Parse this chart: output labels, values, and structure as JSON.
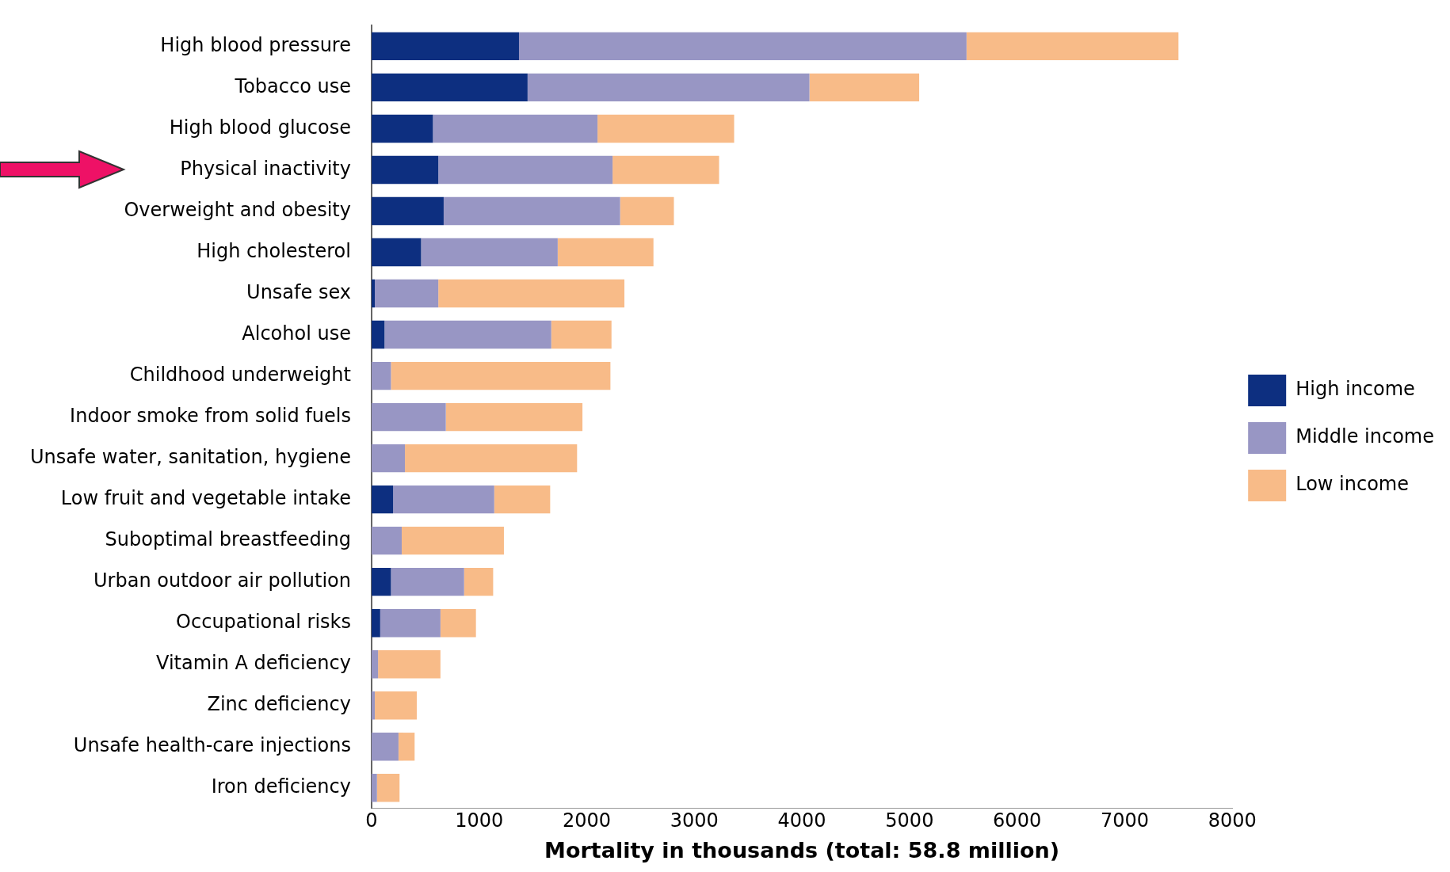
{
  "chart_data": {
    "type": "bar",
    "orientation": "horizontal",
    "stacked": true,
    "xlabel": "Mortality in thousands (total: 58.8 million)",
    "categories": [
      "High blood pressure",
      "Tobacco use",
      "High blood glucose",
      "Physical inactivity",
      "Overweight and obesity",
      "High cholesterol",
      "Unsafe sex",
      "Alcohol use",
      "Childhood underweight",
      "Indoor smoke from solid fuels",
      "Unsafe water, sanitation, hygiene",
      "Low fruit and vegetable intake",
      "Suboptimal breastfeeding",
      "Urban outdoor air pollution",
      "Occupational risks",
      "Vitamin A deficiency",
      "Zinc deficiency",
      "Unsafe health-care injections",
      "Iron deficiency"
    ],
    "series": [
      {
        "name": "High income",
        "color": "#0d2f80",
        "values": [
          1370,
          1450,
          570,
          620,
          670,
          460,
          30,
          120,
          0,
          0,
          0,
          200,
          0,
          180,
          80,
          0,
          0,
          0,
          0
        ]
      },
      {
        "name": "Middle income",
        "color": "#9896c4",
        "values": [
          4160,
          2620,
          1530,
          1620,
          1640,
          1270,
          590,
          1550,
          180,
          690,
          310,
          940,
          280,
          680,
          560,
          60,
          30,
          250,
          50
        ]
      },
      {
        "name": "Low income",
        "color": "#f8bb88",
        "values": [
          1970,
          1020,
          1270,
          990,
          500,
          890,
          1730,
          560,
          2040,
          1270,
          1600,
          520,
          950,
          270,
          330,
          580,
          390,
          150,
          210
        ]
      }
    ],
    "xlim": [
      0,
      8000
    ],
    "xticks": [
      0,
      1000,
      2000,
      3000,
      4000,
      5000,
      6000,
      7000,
      8000
    ],
    "grid": false,
    "legend": "right"
  }
}
